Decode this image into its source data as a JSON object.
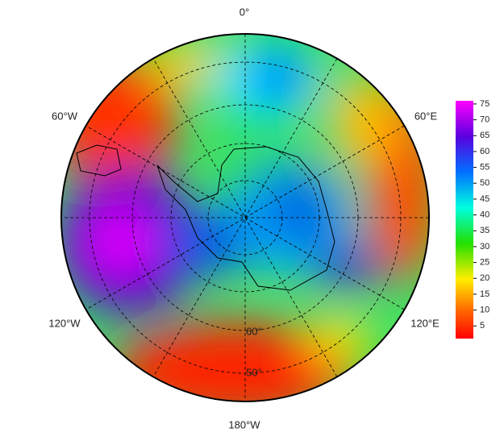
{
  "map": {
    "meridian_labels": [
      "0°",
      "60°E",
      "120°E",
      "180°W",
      "120°W",
      "60°W"
    ],
    "latitude_labels": [
      "60°",
      "50°"
    ]
  },
  "colorbar": {
    "lim": [
      1,
      76
    ],
    "ticks": [
      5,
      10,
      15,
      20,
      25,
      30,
      35,
      40,
      45,
      50,
      55,
      60,
      65,
      70,
      75
    ]
  }
}
